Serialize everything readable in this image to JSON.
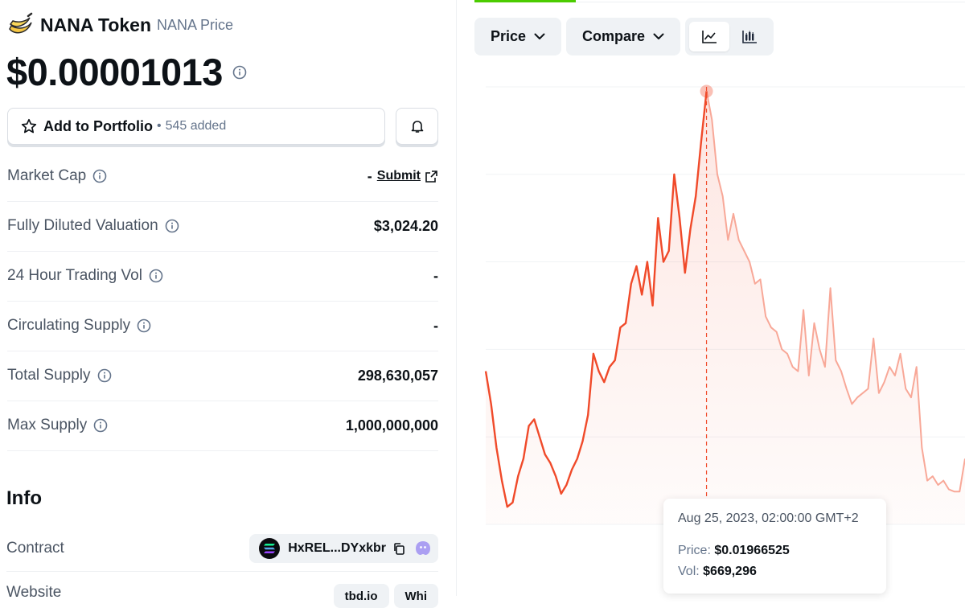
{
  "coin": {
    "name": "NANA Token",
    "subtitle": "NANA Price",
    "price": "$0.00001013",
    "logo_icon": "banana-icon"
  },
  "portfolio": {
    "label": "Add to Portfolio",
    "dot": "•",
    "count": "545 added"
  },
  "stats": [
    {
      "label": "Market Cap",
      "value": "-",
      "link": "Submit"
    },
    {
      "label": "Fully Diluted Valuation",
      "value": "$3,024.20"
    },
    {
      "label": "24 Hour Trading Vol",
      "value": "-"
    },
    {
      "label": "Circulating Supply",
      "value": "-"
    },
    {
      "label": "Total Supply",
      "value": "298,630,057"
    },
    {
      "label": "Max Supply",
      "value": "1,000,000,000"
    }
  ],
  "info": {
    "title": "Info",
    "contract_label": "Contract",
    "contract_address": "HxREL...DYxkbr",
    "website_label": "Website",
    "website_pills": [
      "tbd.io",
      "Whi"
    ]
  },
  "toolbar": {
    "price_label": "Price",
    "compare_label": "Compare",
    "chart_modes": [
      "line-chart-icon",
      "candlestick-chart-icon"
    ],
    "active_mode": "line-chart-icon"
  },
  "tooltip": {
    "date": "Aug 25, 2023, 02:00:00 GMT+2",
    "price_label": "Price:",
    "price_value": "$0.01966525",
    "vol_label": "Vol:",
    "vol_value": "$669,296"
  },
  "colors": {
    "accent_green": "#4bcc00",
    "line_red": "#f04a2a",
    "line_faded": "#f8a898",
    "text_primary": "#0d1217",
    "text_muted": "#64748b"
  },
  "chart_data": {
    "type": "line",
    "series": [
      {
        "values": [
          0.007,
          0.0055,
          0.0035,
          0.002,
          0.0008,
          0.001,
          0.0022,
          0.003,
          0.0045,
          0.0048,
          0.004,
          0.0032,
          0.0028,
          0.0022,
          0.0014,
          0.0018,
          0.0025,
          0.003,
          0.0038,
          0.005,
          0.0078,
          0.007,
          0.0065,
          0.0072,
          0.0075,
          0.009,
          0.0092,
          0.011,
          0.0118,
          0.0105,
          0.012,
          0.01,
          0.014,
          0.012,
          0.0125,
          0.016,
          0.014,
          0.0115,
          0.0135,
          0.015,
          0.0175,
          0.0198,
          0.0185,
          0.016,
          0.015,
          0.013,
          0.0142,
          0.013,
          0.0125,
          0.012,
          0.011,
          0.0112,
          0.0095,
          0.009,
          0.0088,
          0.008,
          0.0078,
          0.0072,
          0.007,
          0.0098,
          0.0068,
          0.0092,
          0.008,
          0.0072,
          0.0108,
          0.0075,
          0.007,
          0.0062,
          0.0055,
          0.0058,
          0.006,
          0.0062,
          0.0085,
          0.006,
          0.0065,
          0.0072,
          0.0068,
          0.0078,
          0.0062,
          0.0058,
          0.0072,
          0.0035,
          0.002,
          0.0022,
          0.0018,
          0.002,
          0.0016,
          0.0015,
          0.0015,
          0.003
        ]
      }
    ],
    "highlight_index": 41,
    "grid": true
  }
}
